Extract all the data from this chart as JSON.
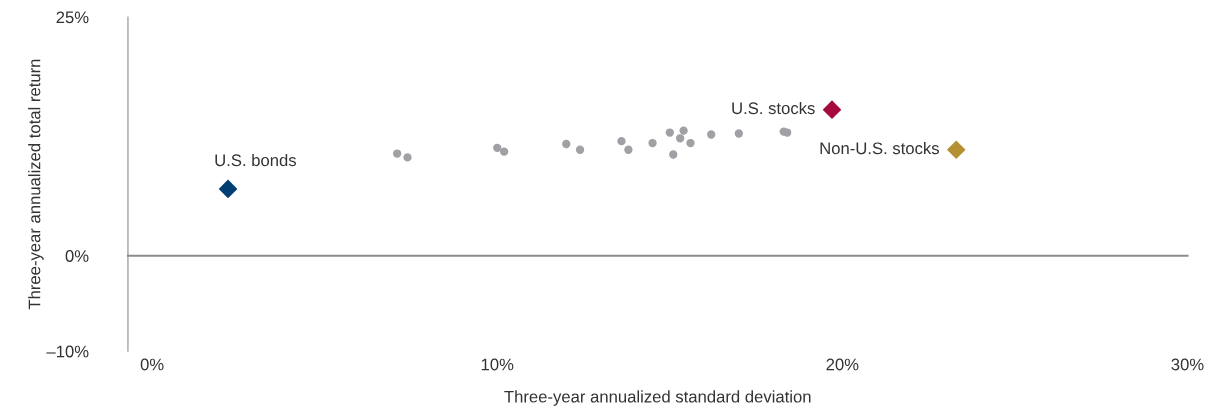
{
  "chart_data": {
    "type": "scatter",
    "xlabel": "Three-year annualized standard deviation",
    "ylabel": "Three-year annualized total return",
    "xlim": [
      -0.7,
      30
    ],
    "ylim": [
      -10,
      25
    ],
    "xticks": [
      {
        "value": 0,
        "label": "0%"
      },
      {
        "value": 10,
        "label": "10%"
      },
      {
        "value": 20,
        "label": "20%"
      },
      {
        "value": 30,
        "label": "30%"
      }
    ],
    "yticks": [
      {
        "value": -10,
        "label": "–10%"
      },
      {
        "value": 0,
        "label": "0%"
      },
      {
        "value": 25,
        "label": "25%"
      }
    ],
    "grid": false,
    "ref_lines": [
      {
        "axis": "y",
        "value": 0,
        "color": "#8c8c8c"
      }
    ],
    "series": [
      {
        "color": "#a0a1a5",
        "marker": "circle",
        "x": [
          7.1,
          7.4,
          10.0,
          10.2,
          12.0,
          12.4,
          13.6,
          13.8,
          14.5,
          15.0,
          15.4,
          15.3,
          15.6,
          15.1,
          16.2,
          17.0,
          18.3,
          18.4
        ],
        "values": [
          10.7,
          10.3,
          11.3,
          10.9,
          11.7,
          11.1,
          12.0,
          11.1,
          11.8,
          12.9,
          13.1,
          12.3,
          11.8,
          10.6,
          12.7,
          12.8,
          13.0,
          12.9
        ]
      },
      {
        "name": "U.S. bonds",
        "color": "#003e74",
        "marker": "diamond",
        "x": [
          2.2
        ],
        "values": [
          7.0
        ]
      },
      {
        "name": "U.S. stocks",
        "color": "#a6093d",
        "marker": "diamond",
        "x": [
          19.7
        ],
        "values": [
          15.3
        ]
      },
      {
        "name": "Non-U.S. stocks",
        "color": "#b39032",
        "marker": "diamond",
        "x": [
          23.3
        ],
        "values": [
          11.1
        ]
      }
    ]
  }
}
